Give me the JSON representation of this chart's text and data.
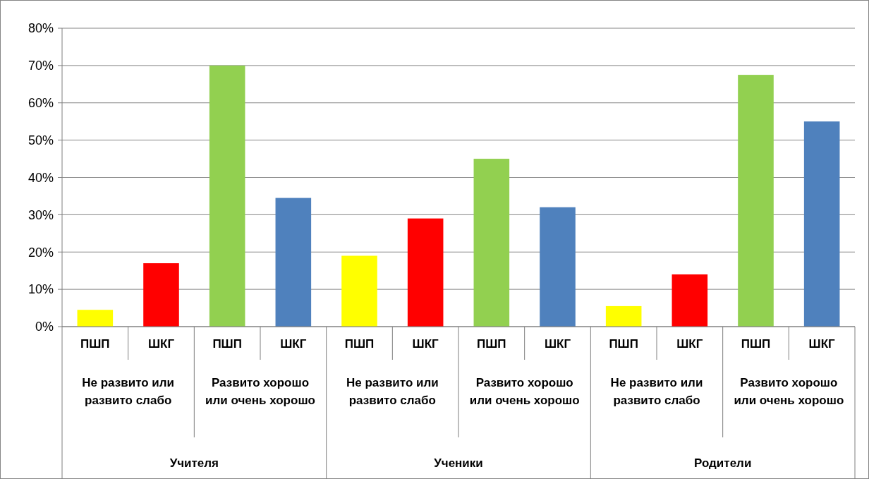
{
  "chart_data": {
    "type": "bar",
    "categories": [
      "ПШП",
      "ШКГ",
      "ПШП",
      "ШКГ",
      "ПШП",
      "ШКГ",
      "ПШП",
      "ШКГ",
      "ПШП",
      "ШКГ",
      "ПШП",
      "ШКГ"
    ],
    "values": [
      4.5,
      17,
      70,
      34.5,
      19,
      29,
      45,
      32,
      5.5,
      14,
      67.5,
      55
    ],
    "colors": [
      "#ffff00",
      "#ff0000",
      "#92d050",
      "#4f81bd",
      "#ffff00",
      "#ff0000",
      "#92d050",
      "#4f81bd",
      "#ffff00",
      "#ff0000",
      "#92d050",
      "#4f81bd"
    ],
    "ylim": [
      0,
      80
    ],
    "yticks": [
      {
        "value": 0,
        "label": "0%"
      },
      {
        "value": 10,
        "label": "10%"
      },
      {
        "value": 20,
        "label": "20%"
      },
      {
        "value": 30,
        "label": "30%"
      },
      {
        "value": 40,
        "label": "40%"
      },
      {
        "value": 50,
        "label": "50%"
      },
      {
        "value": 60,
        "label": "60%"
      },
      {
        "value": 70,
        "label": "70%"
      },
      {
        "value": 80,
        "label": "80%"
      }
    ],
    "grid": "y",
    "annotations": [
      "Не развито или развито слабо",
      "Развито хорошо или очень хорошо",
      "Не развито или развито слабо",
      "Развито хорошо или очень хорошо",
      "Не развито или развито слабо",
      "Развито хорошо или очень хорошо",
      "Учителя",
      "Ученики",
      "Родители"
    ]
  }
}
